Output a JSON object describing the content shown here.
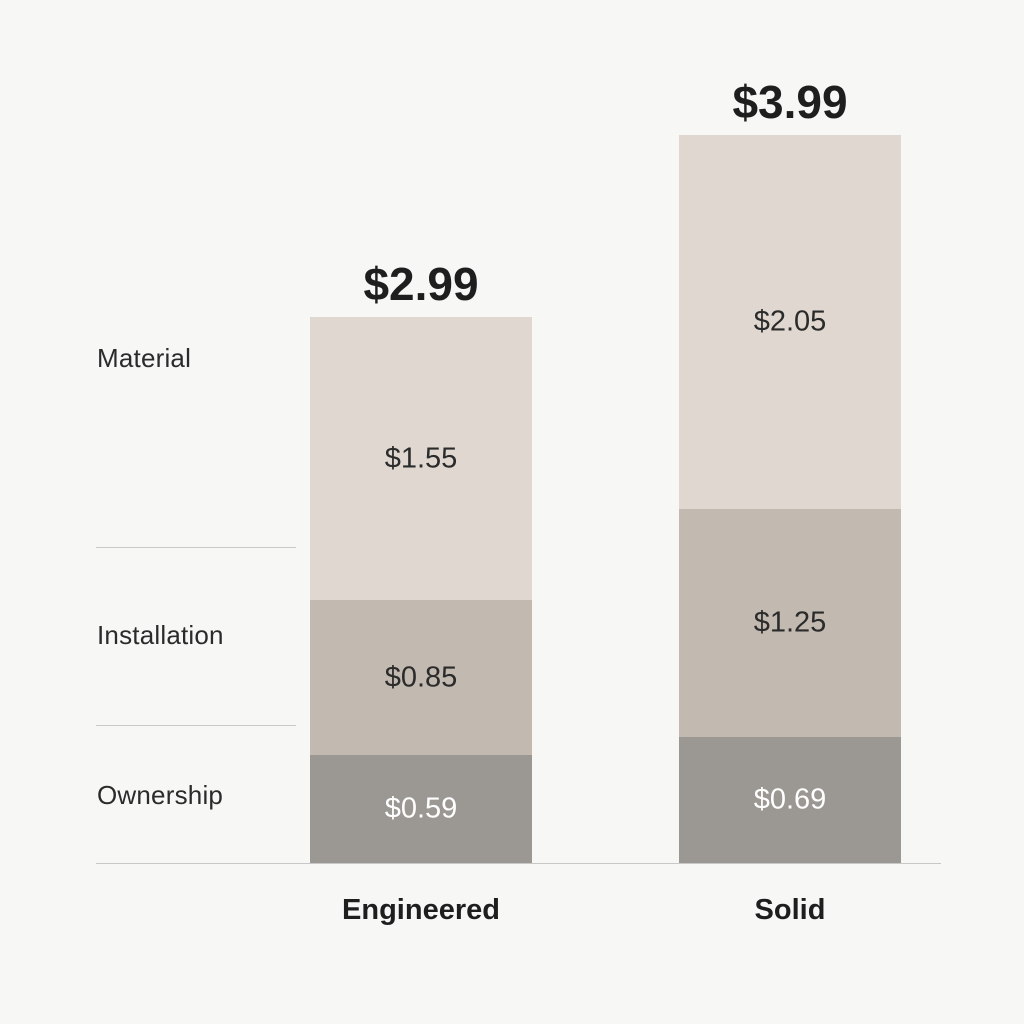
{
  "chart_data": {
    "type": "bar",
    "stacked": true,
    "categories": [
      "Engineered",
      "Solid"
    ],
    "series": [
      {
        "name": "Ownership",
        "values": [
          0.59,
          0.69
        ],
        "labels": [
          "$0.59",
          "$0.69"
        ],
        "color": "#9b9894",
        "label_color": "#ffffff"
      },
      {
        "name": "Installation",
        "values": [
          0.85,
          1.25
        ],
        "labels": [
          "$0.85",
          "$1.25"
        ],
        "color": "#c2b9b0",
        "label_color": "#2b2b2b"
      },
      {
        "name": "Material",
        "values": [
          1.55,
          2.05
        ],
        "labels": [
          "$1.55",
          "$2.05"
        ],
        "color": "#e0d8d0",
        "label_color": "#2b2b2b"
      }
    ],
    "totals": [
      "$2.99",
      "$3.99"
    ],
    "row_labels": [
      "Material",
      "Installation",
      "Ownership"
    ],
    "ylim": [
      0,
      3.99
    ],
    "title": "",
    "xlabel": "",
    "ylabel": "",
    "grid": false,
    "legend": "left"
  }
}
